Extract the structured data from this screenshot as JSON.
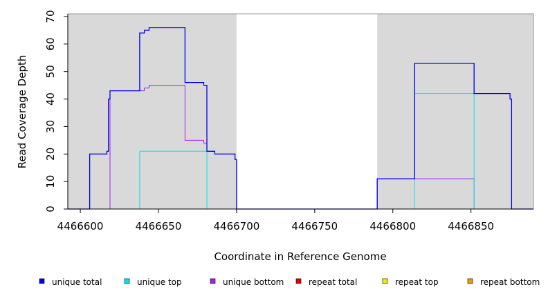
{
  "chart_data": {
    "type": "line",
    "title": "",
    "xlabel": "Coordinate in Reference Genome",
    "ylabel": "Read Coverage Depth",
    "xlim": [
      4466592,
      4466890
    ],
    "ylim": [
      0,
      71
    ],
    "x_ticks": [
      4466600,
      4466650,
      4466700,
      4466750,
      4466800,
      4466850
    ],
    "x_tick_labels": [
      "4466600",
      "4466650",
      "4466700",
      "4466750",
      "4466800",
      "4466850"
    ],
    "y_ticks": [
      0,
      10,
      20,
      30,
      40,
      50,
      60,
      70
    ],
    "y_tick_labels": [
      "0",
      "10",
      "20",
      "30",
      "40",
      "50",
      "60",
      "70"
    ],
    "shaded_regions": [
      {
        "x0": 4466592,
        "x1": 4466700,
        "color": "#d9d9d9"
      },
      {
        "x0": 4466790,
        "x1": 4466890,
        "color": "#d9d9d9"
      }
    ],
    "grid": false,
    "legend_placement": "bottom",
    "series": [
      {
        "name": "unique total",
        "color": "#0000ee",
        "points": [
          [
            4466592,
            0
          ],
          [
            4466606,
            0
          ],
          [
            4466606,
            20
          ],
          [
            4466617,
            20
          ],
          [
            4466617,
            21
          ],
          [
            4466618,
            21
          ],
          [
            4466618,
            40
          ],
          [
            4466619,
            40
          ],
          [
            4466619,
            43
          ],
          [
            4466638,
            43
          ],
          [
            4466638,
            64
          ],
          [
            4466641,
            64
          ],
          [
            4466641,
            65
          ],
          [
            4466644,
            65
          ],
          [
            4466644,
            66
          ],
          [
            4466667,
            66
          ],
          [
            4466667,
            46
          ],
          [
            4466679,
            46
          ],
          [
            4466679,
            45
          ],
          [
            4466681,
            45
          ],
          [
            4466681,
            21
          ],
          [
            4466686,
            21
          ],
          [
            4466686,
            20
          ],
          [
            4466699,
            20
          ],
          [
            4466699,
            18
          ],
          [
            4466700,
            18
          ],
          [
            4466700,
            0
          ],
          [
            4466790,
            0
          ],
          [
            4466790,
            11
          ],
          [
            4466814,
            11
          ],
          [
            4466814,
            53
          ],
          [
            4466852,
            53
          ],
          [
            4466852,
            42
          ],
          [
            4466875,
            42
          ],
          [
            4466875,
            40
          ],
          [
            4466876,
            40
          ],
          [
            4466876,
            0
          ],
          [
            4466890,
            0
          ]
        ]
      },
      {
        "name": "unique top",
        "color": "#00e5ee",
        "points": [
          [
            4466592,
            0
          ],
          [
            4466638,
            0
          ],
          [
            4466638,
            21
          ],
          [
            4466681,
            21
          ],
          [
            4466681,
            0
          ],
          [
            4466814,
            0
          ],
          [
            4466814,
            42
          ],
          [
            4466852,
            42
          ],
          [
            4466852,
            0
          ],
          [
            4466890,
            0
          ]
        ]
      },
      {
        "name": "unique bottom",
        "color": "#a020f0",
        "points": [
          [
            4466592,
            0
          ],
          [
            4466619,
            0
          ],
          [
            4466619,
            43
          ],
          [
            4466641,
            43
          ],
          [
            4466641,
            44
          ],
          [
            4466644,
            44
          ],
          [
            4466644,
            45
          ],
          [
            4466667,
            45
          ],
          [
            4466667,
            25
          ],
          [
            4466679,
            25
          ],
          [
            4466679,
            24
          ],
          [
            4466681,
            24
          ],
          [
            4466681,
            0
          ],
          [
            4466790,
            0
          ],
          [
            4466790,
            11
          ],
          [
            4466852,
            11
          ],
          [
            4466852,
            0
          ],
          [
            4466890,
            0
          ]
        ]
      },
      {
        "name": "repeat total",
        "color": "#ee0000",
        "points": [
          [
            4466592,
            0
          ],
          [
            4466890,
            0
          ]
        ]
      },
      {
        "name": "repeat top",
        "color": "#eeee00",
        "points": [
          [
            4466592,
            0
          ],
          [
            4466890,
            0
          ]
        ]
      },
      {
        "name": "repeat bottom",
        "color": "#ee9a00",
        "points": [
          [
            4466592,
            0
          ],
          [
            4466890,
            0
          ]
        ]
      }
    ]
  }
}
